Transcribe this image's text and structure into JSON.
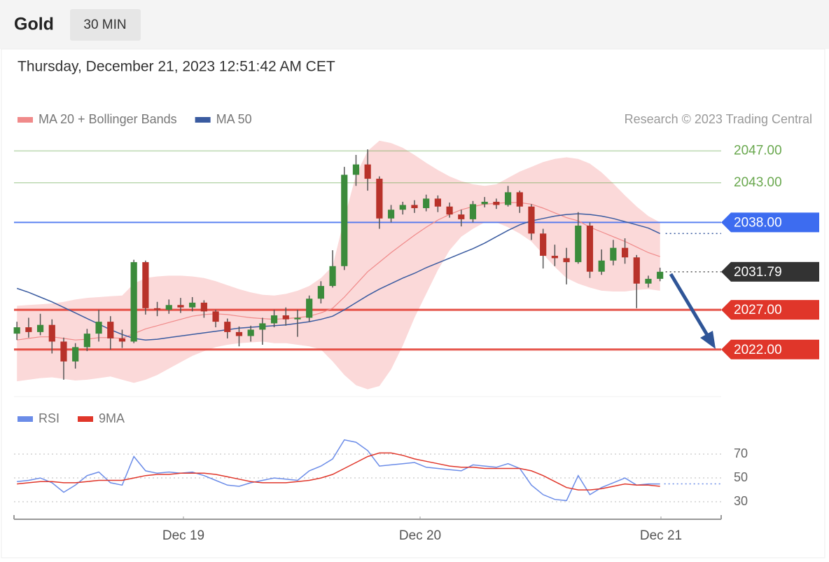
{
  "header": {
    "symbol": "Gold",
    "interval": "30 MIN",
    "datetime": "Thursday, December 21, 2023 12:51:42 AM CET"
  },
  "chart_data": [
    {
      "type": "candlestick",
      "credit": "Research © 2023 Trading Central",
      "xlim": [
        -0.25,
        60.23
      ],
      "ylim": [
        2016.6,
        2048.8
      ],
      "up_color": "#3b8b3b",
      "down_color": "#b8322a",
      "open": [
        2024.0,
        2024.8,
        2024.2,
        2025.1,
        2023.0,
        2020.5,
        2022.3,
        2024.0,
        2025.5,
        2023.4,
        2023.0,
        2033.0,
        2027.2,
        2027.0,
        2027.6,
        2027.3,
        2027.9,
        2026.8,
        2025.5,
        2024.2,
        2023.7,
        2024.5,
        2025.3,
        2026.3,
        2025.8,
        2026.0,
        2028.4,
        2030.0,
        2032.5,
        2044.0,
        2045.3,
        2043.5,
        2038.5,
        2039.6,
        2040.2,
        2039.8,
        2041.0,
        2040.0,
        2039.0,
        2038.4,
        2040.3,
        2040.6,
        2040.2,
        2041.8,
        2040.0,
        2036.6,
        2033.8,
        2033.5,
        2033.0,
        2037.6,
        2031.8,
        2033.2,
        2034.8,
        2033.6,
        2030.3,
        2030.9
      ],
      "high": [
        2025.5,
        2026.0,
        2026.5,
        2025.8,
        2023.5,
        2022.8,
        2024.6,
        2027.0,
        2026.2,
        2024.5,
        2033.3,
        2033.2,
        2028.0,
        2028.3,
        2028.5,
        2028.6,
        2028.2,
        2027.0,
        2025.9,
        2024.9,
        2025.0,
        2026.0,
        2027.0,
        2027.3,
        2027.0,
        2028.8,
        2030.6,
        2034.5,
        2045.0,
        2046.5,
        2047.2,
        2043.8,
        2040.2,
        2040.6,
        2040.8,
        2041.5,
        2041.4,
        2040.5,
        2039.6,
        2040.7,
        2041.2,
        2041.0,
        2042.6,
        2042.0,
        2040.3,
        2037.2,
        2035.2,
        2034.8,
        2039.3,
        2038.0,
        2034.6,
        2035.8,
        2036.0,
        2033.9,
        2031.3,
        2032.3
      ],
      "low": [
        2023.2,
        2023.5,
        2023.8,
        2021.5,
        2018.2,
        2019.6,
        2021.8,
        2023.0,
        2022.0,
        2022.2,
        2022.8,
        2026.4,
        2026.2,
        2026.5,
        2026.6,
        2026.8,
        2026.0,
        2024.8,
        2023.4,
        2022.4,
        2023.0,
        2022.6,
        2024.8,
        2025.0,
        2023.6,
        2025.5,
        2027.8,
        2029.8,
        2032.0,
        2042.6,
        2042.0,
        2037.2,
        2038.0,
        2039.0,
        2039.2,
        2039.4,
        2039.3,
        2038.6,
        2037.5,
        2038.0,
        2039.9,
        2039.7,
        2040.0,
        2039.2,
        2035.8,
        2032.2,
        2032.5,
        2030.2,
        2032.8,
        2031.0,
        2031.4,
        2032.6,
        2032.8,
        2027.2,
        2029.8,
        2030.6
      ],
      "close": [
        2024.8,
        2024.2,
        2025.1,
        2023.0,
        2020.5,
        2022.3,
        2024.0,
        2025.5,
        2023.4,
        2023.0,
        2033.0,
        2027.2,
        2027.0,
        2027.6,
        2027.3,
        2027.9,
        2026.8,
        2025.5,
        2024.2,
        2023.7,
        2024.5,
        2025.3,
        2026.3,
        2025.8,
        2026.0,
        2028.4,
        2030.0,
        2032.5,
        2044.0,
        2045.3,
        2043.5,
        2038.5,
        2039.6,
        2040.2,
        2039.8,
        2041.0,
        2040.0,
        2039.0,
        2038.4,
        2040.3,
        2040.6,
        2040.2,
        2041.8,
        2040.0,
        2036.6,
        2033.8,
        2033.5,
        2033.0,
        2037.6,
        2031.8,
        2033.2,
        2034.8,
        2033.6,
        2030.3,
        2030.9,
        2031.79
      ],
      "series": [
        {
          "name": "MA 20 + Bollinger Bands",
          "color": "#f08a8a",
          "band_color": "#fbd9d9",
          "values": [
            2023.2,
            2023.4,
            2023.6,
            2023.6,
            2023.4,
            2023.2,
            2023.3,
            2023.5,
            2023.5,
            2023.4,
            2024.0,
            2024.6,
            2025.0,
            2025.4,
            2025.8,
            2026.2,
            2026.4,
            2026.5,
            2026.4,
            2026.2,
            2026.0,
            2025.9,
            2025.8,
            2025.9,
            2026.0,
            2026.2,
            2026.6,
            2027.2,
            2028.6,
            2030.2,
            2031.8,
            2033.0,
            2034.2,
            2035.3,
            2036.4,
            2037.4,
            2038.3,
            2039.0,
            2039.6,
            2040.0,
            2040.3,
            2040.4,
            2040.5,
            2040.5,
            2040.3,
            2039.8,
            2039.2,
            2038.6,
            2038.2,
            2037.4,
            2036.8,
            2036.2,
            2035.6,
            2034.9,
            2034.2,
            2033.7
          ],
          "upper": [
            2027.5,
            2027.6,
            2027.7,
            2027.8,
            2028.0,
            2028.3,
            2028.5,
            2028.6,
            2028.7,
            2028.8,
            2030.3,
            2031.0,
            2031.2,
            2031.3,
            2031.3,
            2031.2,
            2031.0,
            2030.6,
            2030.1,
            2029.6,
            2029.2,
            2028.9,
            2028.8,
            2029.0,
            2029.4,
            2030.0,
            2031.0,
            2032.5,
            2038.5,
            2044.0,
            2047.0,
            2048.3,
            2048.0,
            2047.4,
            2046.5,
            2045.5,
            2044.6,
            2043.8,
            2043.2,
            2042.8,
            2042.6,
            2042.8,
            2043.6,
            2044.4,
            2045.0,
            2045.6,
            2046.0,
            2046.2,
            2046.0,
            2045.4,
            2044.3,
            2042.9,
            2041.4,
            2040.0,
            2038.8,
            2038.0
          ],
          "lower": [
            2018.0,
            2018.2,
            2018.4,
            2018.5,
            2018.3,
            2018.1,
            2018.2,
            2018.4,
            2018.6,
            2018.2,
            2017.8,
            2018.2,
            2018.8,
            2019.6,
            2020.4,
            2021.2,
            2021.8,
            2022.3,
            2022.6,
            2022.8,
            2022.9,
            2023.0,
            2022.8,
            2022.8,
            2022.6,
            2022.4,
            2022.0,
            2020.5,
            2018.8,
            2017.5,
            2017.0,
            2017.4,
            2019.5,
            2022.5,
            2026.0,
            2029.0,
            2032.0,
            2034.5,
            2036.2,
            2037.2,
            2038.0,
            2038.0,
            2037.4,
            2036.6,
            2035.6,
            2034.0,
            2032.4,
            2031.0,
            2030.3,
            2029.8,
            2029.4,
            2029.3,
            2029.3,
            2029.5,
            2029.6,
            2029.4
          ]
        },
        {
          "name": "MA 50",
          "color": "#3a5ba0",
          "values": [
            2029.7,
            2029.2,
            2028.6,
            2028.0,
            2027.3,
            2026.6,
            2025.9,
            2025.2,
            2024.5,
            2023.9,
            2023.4,
            2023.2,
            2023.3,
            2023.5,
            2023.7,
            2023.9,
            2024.1,
            2024.3,
            2024.5,
            2024.7,
            2024.8,
            2024.9,
            2025.0,
            2025.1,
            2025.3,
            2025.5,
            2025.8,
            2026.2,
            2027.0,
            2027.9,
            2028.8,
            2029.6,
            2030.3,
            2031.0,
            2031.6,
            2032.3,
            2032.9,
            2033.5,
            2034.1,
            2034.7,
            2035.4,
            2036.2,
            2037.0,
            2037.7,
            2038.2,
            2038.5,
            2038.8,
            2039.0,
            2039.1,
            2039.0,
            2038.8,
            2038.5,
            2038.1,
            2037.7,
            2037.3,
            2036.6
          ]
        }
      ],
      "levels": [
        {
          "value": 2047,
          "label": "2047.00",
          "color": "#6aa84f",
          "style": "text"
        },
        {
          "value": 2043,
          "label": "2043.00",
          "color": "#6aa84f",
          "style": "text"
        },
        {
          "value": 2038,
          "label": "2038.00",
          "color": "#3d6cf0",
          "style": "tag"
        },
        {
          "value": 2031.79,
          "label": "2031.79",
          "color": "#333333",
          "style": "price"
        },
        {
          "value": 2027,
          "label": "2027.00",
          "color": "#e0362a",
          "style": "tag-thick"
        },
        {
          "value": 2022,
          "label": "2022.00",
          "color": "#e0362a",
          "style": "tag-thick"
        }
      ]
    },
    {
      "type": "line",
      "xlim": [
        -0.25,
        60.23
      ],
      "ylim": [
        21.8,
        86.5
      ],
      "yticks": [
        70,
        50,
        30
      ],
      "grid": true,
      "xticks": [
        {
          "value": 14.24,
          "label": "Dec 19"
        },
        {
          "value": 34.48,
          "label": "Dec 20"
        },
        {
          "value": 55.08,
          "label": "Dec 21"
        }
      ],
      "series": [
        {
          "name": "RSI",
          "color": "#6b8ce8",
          "values": [
            47,
            48,
            50,
            46,
            38,
            44,
            52,
            55,
            46,
            44,
            68,
            56,
            54,
            55,
            54,
            55,
            52,
            48,
            44,
            43,
            46,
            48,
            50,
            49,
            48,
            56,
            60,
            66,
            82,
            80,
            73,
            60,
            61,
            62,
            63,
            59,
            58,
            57,
            56,
            61,
            60,
            59,
            62,
            58,
            44,
            36,
            32,
            31,
            52,
            36,
            42,
            46,
            50,
            44,
            45,
            45
          ]
        },
        {
          "name": "9MA",
          "color": "#e0362a",
          "values": [
            45,
            46,
            47,
            47,
            46,
            46,
            47,
            48,
            48,
            48,
            50,
            52,
            53,
            53,
            54,
            54,
            54,
            53,
            51,
            49,
            47,
            46,
            46,
            46,
            47,
            48,
            50,
            53,
            58,
            63,
            68,
            71,
            71,
            69,
            66,
            64,
            62,
            60,
            59,
            59,
            58,
            58,
            58,
            58,
            56,
            52,
            47,
            42,
            40,
            40,
            41,
            43,
            45,
            44,
            44,
            43
          ]
        }
      ]
    }
  ]
}
